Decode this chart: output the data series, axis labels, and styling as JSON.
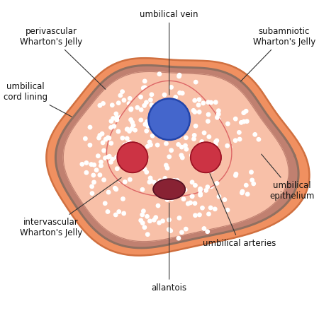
{
  "bg_color": "#ffffff",
  "outer_blob_color": "#f09060",
  "outer_blob_edge": "#d07040",
  "cord_ring_color": "#c08070",
  "cord_ring_edge": "#907060",
  "inner_blob_color": "#f8c0a8",
  "inner_blob_edge": "#e8a080",
  "peri_lobe_color": "#f8c0a8",
  "peri_lobe_edge": "#dd6666",
  "vein_color": "#4466cc",
  "vein_edge": "#2244aa",
  "artery_color": "#cc3344",
  "artery_edge": "#991122",
  "allantois_color": "#882233",
  "allantois_edge": "#551122",
  "dot_color": "#ffffff",
  "label_fontsize": 8.5,
  "label_color": "#111111",
  "labels": {
    "umbilical_vein": "umbilical vein",
    "perivascular_whartons": "perivascular\nWharton's Jelly",
    "subamniotic_whartons": "subamniotic\nWharton's Jelly",
    "umbilical_cord_lining": "umbilical\ncord lining",
    "intervascular_whartons": "intervascular\nWharton's Jelly",
    "umbilical_epithelium": "umbilical\nepithelium",
    "umbilical_arteries": "umbilical arteries",
    "allantois": "allantois"
  }
}
